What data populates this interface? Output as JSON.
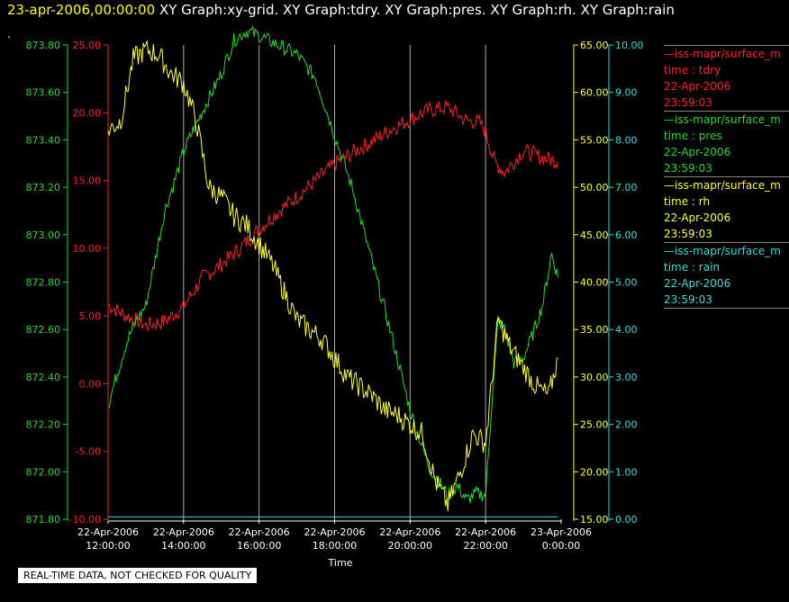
{
  "header": {
    "timestamp": "23-apr-2006,00:00:00",
    "graphs": "XY Graph:xy-grid.  XY Graph:tdry.  XY Graph:pres.  XY Graph:rh.  XY Graph:rain",
    "dot": "."
  },
  "legend": [
    {
      "name": "—iss-mapr/surface_m",
      "field": "time : tdry",
      "date": "22-Apr-2006",
      "time": "23:59:03",
      "color": "#ff2020"
    },
    {
      "name": "—iss-mapr/surface_m",
      "field": "time : pres",
      "date": "22-Apr-2006",
      "time": "23:59:03",
      "color": "#22dd22"
    },
    {
      "name": "—iss-mapr/surface_m",
      "field": "time : rh",
      "date": "22-Apr-2006",
      "time": "23:59:03",
      "color": "#ffff30"
    },
    {
      "name": "—iss-mapr/surface_m",
      "field": "time : rain",
      "date": "22-Apr-2006",
      "time": "23:59:03",
      "color": "#33dddd"
    }
  ],
  "footer": "REAL-TIME DATA, NOT CHECKED FOR QUALITY",
  "chart_data": {
    "type": "line",
    "xlabel": "Time",
    "x_range": [
      "2006-04-22 12:00",
      "2006-04-23 00:00"
    ],
    "x_ticks": [
      {
        "date": "22-Apr-2006",
        "time": "12:00:00"
      },
      {
        "date": "22-Apr-2006",
        "time": "14:00:00"
      },
      {
        "date": "22-Apr-2006",
        "time": "16:00:00"
      },
      {
        "date": "22-Apr-2006",
        "time": "18:00:00"
      },
      {
        "date": "22-Apr-2006",
        "time": "20:00:00"
      },
      {
        "date": "22-Apr-2006",
        "time": "22:00:00"
      },
      {
        "date": "23-Apr-2006",
        "time": "0:00:00"
      }
    ],
    "grid": "vertical",
    "axes": [
      {
        "id": "tdry",
        "side": "left",
        "color": "#ff2020",
        "range": [
          -10,
          25
        ],
        "ticks": [
          "-10.00",
          "-5.00",
          "0.00",
          "5.00",
          "10.00",
          "15.00",
          "20.00",
          "25.00"
        ]
      },
      {
        "id": "pres",
        "side": "left",
        "color": "#22dd22",
        "range": [
          871.8,
          873.8
        ],
        "ticks": [
          "871.80",
          "872.00",
          "872.20",
          "872.40",
          "872.60",
          "872.80",
          "873.00",
          "873.20",
          "873.40",
          "873.60",
          "873.80"
        ]
      },
      {
        "id": "rh",
        "side": "right",
        "color": "#ffff30",
        "range": [
          15,
          65
        ],
        "ticks": [
          "15.00",
          "20.00",
          "25.00",
          "30.00",
          "35.00",
          "40.00",
          "45.00",
          "50.00",
          "55.00",
          "60.00",
          "65.00"
        ]
      },
      {
        "id": "rain",
        "side": "right",
        "color": "#33dddd",
        "range": [
          0,
          10
        ],
        "ticks": [
          "0.00",
          "1.00",
          "2.00",
          "3.00",
          "4.00",
          "5.00",
          "6.00",
          "7.00",
          "8.00",
          "9.00",
          "10.00"
        ]
      }
    ],
    "series": [
      {
        "axis": "tdry",
        "color": "#ff2020",
        "x": [
          "12:00",
          "12:30",
          "13:00",
          "13:30",
          "14:00",
          "14:30",
          "15:00",
          "15:30",
          "16:00",
          "16:30",
          "17:00",
          "17:30",
          "18:00",
          "18:30",
          "19:00",
          "19:30",
          "20:00",
          "20:30",
          "21:00",
          "21:30",
          "21:50",
          "22:00",
          "22:15",
          "22:30",
          "23:00",
          "23:30",
          "23:55"
        ],
        "y": [
          5.8,
          5.0,
          4.3,
          4.6,
          5.7,
          7.8,
          8.8,
          10.0,
          11.4,
          12.7,
          13.8,
          15.0,
          16.2,
          17.1,
          17.9,
          18.8,
          19.5,
          20.2,
          20.4,
          19.4,
          19.3,
          18.6,
          16.3,
          15.6,
          17.2,
          16.7,
          16.4
        ]
      },
      {
        "axis": "pres",
        "color": "#22dd22",
        "x": [
          "12:00",
          "12:15",
          "12:30",
          "12:45",
          "13:00",
          "13:15",
          "13:30",
          "13:45",
          "14:00",
          "14:15",
          "14:30",
          "14:45",
          "15:00",
          "15:20",
          "15:40",
          "16:00",
          "16:30",
          "17:00",
          "17:30",
          "18:00",
          "18:30",
          "19:00",
          "19:30",
          "20:00",
          "20:30",
          "21:00",
          "21:15",
          "21:30",
          "21:45",
          "22:00",
          "22:10",
          "22:20",
          "22:30",
          "22:45",
          "23:00",
          "23:15",
          "23:30",
          "23:45",
          "23:55"
        ],
        "y": [
          872.28,
          872.42,
          872.55,
          872.64,
          872.7,
          872.9,
          873.1,
          873.22,
          873.35,
          873.44,
          873.52,
          873.6,
          873.68,
          873.82,
          873.86,
          873.84,
          873.8,
          873.76,
          873.66,
          873.42,
          873.18,
          872.88,
          872.58,
          872.26,
          872.02,
          871.9,
          871.94,
          871.88,
          871.91,
          871.9,
          872.3,
          872.64,
          872.6,
          872.46,
          872.48,
          872.58,
          872.7,
          872.92,
          872.82
        ]
      },
      {
        "axis": "rh",
        "color": "#ffff30",
        "x": [
          "12:00",
          "12:20",
          "12:40",
          "13:00",
          "13:20",
          "13:40",
          "14:00",
          "14:20",
          "14:40",
          "15:00",
          "15:20",
          "15:40",
          "16:00",
          "16:20",
          "16:40",
          "17:00",
          "17:20",
          "17:40",
          "18:00",
          "18:20",
          "18:40",
          "19:00",
          "19:20",
          "19:40",
          "20:00",
          "20:20",
          "20:40",
          "21:00",
          "21:20",
          "21:40",
          "22:00",
          "22:20",
          "22:40",
          "23:00",
          "23:20",
          "23:40",
          "23:55"
        ],
        "y": [
          56,
          57,
          63.5,
          64.5,
          64,
          62,
          61,
          57,
          50,
          49,
          47,
          46,
          44,
          42,
          39,
          36,
          35,
          34,
          32,
          30,
          29,
          28,
          26.5,
          26,
          25,
          24,
          19,
          16.5,
          20,
          24,
          23,
          36,
          33,
          31,
          29,
          28,
          32
        ]
      },
      {
        "axis": "rain",
        "color": "#33dddd",
        "x": [
          "12:00",
          "23:55"
        ],
        "y": [
          0.05,
          0.05
        ]
      }
    ]
  }
}
